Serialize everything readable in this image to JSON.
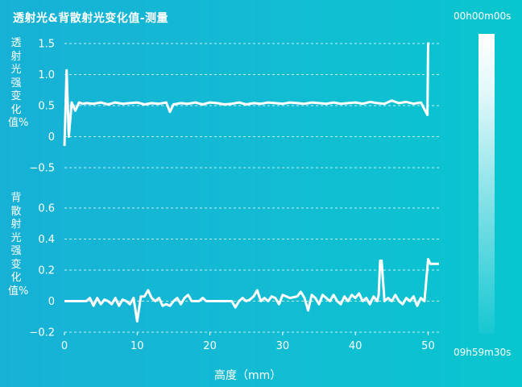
{
  "title": "透射光&背散射光变化值-测量",
  "colorbar": {
    "start_label": "00h00m00s",
    "end_label": "09h59m30s"
  },
  "chart_data": [
    {
      "type": "line",
      "name": "transmission",
      "ylabel": "透射光强变化值%",
      "ylim": [
        -0.6,
        1.6
      ],
      "yticks": [
        -0.5,
        0,
        0.5,
        1.0,
        1.5
      ],
      "ytick_labels": [
        "−0.5",
        "0",
        "0.5",
        "1.0",
        "1.5"
      ],
      "xlim": [
        0,
        51.5
      ],
      "grid": true,
      "series": [
        {
          "color": "#ffffff",
          "x": [
            0,
            0.3,
            0.6,
            1,
            1.5,
            2,
            2.5,
            3,
            4,
            5,
            6,
            7,
            8,
            9,
            10,
            11,
            12,
            13,
            14,
            14.5,
            15,
            16,
            17,
            18,
            19,
            20,
            21,
            22,
            23,
            24,
            25,
            26,
            27,
            28,
            29,
            30,
            31,
            32,
            33,
            34,
            35,
            36,
            37,
            38,
            39,
            40,
            41,
            42,
            43,
            44,
            45,
            46,
            47,
            48,
            49,
            49.9,
            50,
            50.2
          ],
          "y": [
            -0.15,
            1.07,
            0.0,
            0.55,
            0.42,
            0.55,
            0.53,
            0.54,
            0.53,
            0.55,
            0.52,
            0.55,
            0.53,
            0.54,
            0.55,
            0.52,
            0.54,
            0.53,
            0.55,
            0.4,
            0.52,
            0.54,
            0.53,
            0.55,
            0.52,
            0.55,
            0.54,
            0.52,
            0.53,
            0.55,
            0.52,
            0.54,
            0.53,
            0.55,
            0.54,
            0.53,
            0.55,
            0.54,
            0.53,
            0.55,
            0.54,
            0.53,
            0.55,
            0.53,
            0.54,
            0.55,
            0.53,
            0.56,
            0.54,
            0.53,
            0.58,
            0.54,
            0.56,
            0.53,
            0.55,
            0.35,
            1.5,
            1.5
          ]
        }
      ]
    },
    {
      "type": "line",
      "name": "backscatter",
      "ylabel": "背散射光强变化值%",
      "ylim": [
        -0.2,
        0.7
      ],
      "yticks": [
        -0.2,
        0,
        0.2,
        0.4,
        0.6
      ],
      "ytick_labels": [
        "−0.2",
        "0",
        "0.2",
        "0.4",
        "0.6"
      ],
      "xlim": [
        0,
        51.5
      ],
      "xticks": [
        0,
        10,
        20,
        30,
        40,
        50
      ],
      "xtick_labels": [
        "0",
        "10",
        "20",
        "30",
        "40",
        "50"
      ],
      "xlabel": "高度（mm）",
      "grid": true,
      "series": [
        {
          "color": "#ffffff",
          "x": [
            0,
            2,
            3,
            3.5,
            4,
            4.5,
            5,
            5.5,
            6,
            6.5,
            7,
            7.5,
            8,
            8.5,
            9,
            9.5,
            10,
            10.5,
            11,
            11.5,
            12,
            12.5,
            13,
            13.5,
            14,
            14.5,
            15,
            15.5,
            16,
            16.5,
            17,
            17.5,
            18,
            18.5,
            19,
            19.5,
            20,
            21,
            22,
            23,
            23.5,
            24,
            24.5,
            25,
            25.5,
            26,
            26.5,
            27,
            27.5,
            28,
            28.5,
            29,
            29.5,
            30,
            31,
            32,
            32.5,
            33,
            33.5,
            34,
            34.5,
            35,
            35.5,
            36,
            36.5,
            37,
            37.5,
            38,
            38.5,
            39,
            39.5,
            40,
            40.5,
            41,
            41.5,
            42,
            42.5,
            43,
            43.2,
            43.4,
            43.6,
            44,
            44.5,
            45,
            45.5,
            46,
            46.5,
            47,
            47.5,
            48,
            48.5,
            49,
            49.5,
            50,
            50.3,
            51,
            51.5
          ],
          "y": [
            0,
            0,
            0,
            0.02,
            -0.03,
            0.02,
            -0.02,
            0.01,
            0,
            -0.02,
            0.02,
            -0.03,
            0.01,
            0,
            -0.02,
            0.02,
            -0.13,
            0.03,
            0.03,
            0.07,
            0.02,
            0,
            0.02,
            -0.03,
            -0.02,
            -0.03,
            0,
            0.02,
            -0.02,
            0.02,
            0.04,
            0,
            0,
            0,
            0.02,
            0,
            0,
            0,
            0,
            0,
            -0.04,
            0,
            0.02,
            0,
            0.01,
            0.03,
            0.07,
            0,
            0.02,
            0,
            0.03,
            0.02,
            -0.02,
            0.04,
            0.02,
            0.03,
            0.06,
            0.02,
            -0.06,
            0.04,
            0.02,
            -0.02,
            0.04,
            0.02,
            0,
            0.04,
            0,
            -0.02,
            0.03,
            0,
            0.04,
            0.02,
            0.05,
            0,
            0.02,
            -0.02,
            0.03,
            0,
            0.04,
            0.26,
            0.26,
            0,
            0.02,
            0,
            0.04,
            0,
            -0.02,
            0.02,
            0,
            0.03,
            -0.03,
            0.02,
            0,
            0.27,
            0.24,
            0.24,
            0.24
          ]
        }
      ]
    }
  ]
}
